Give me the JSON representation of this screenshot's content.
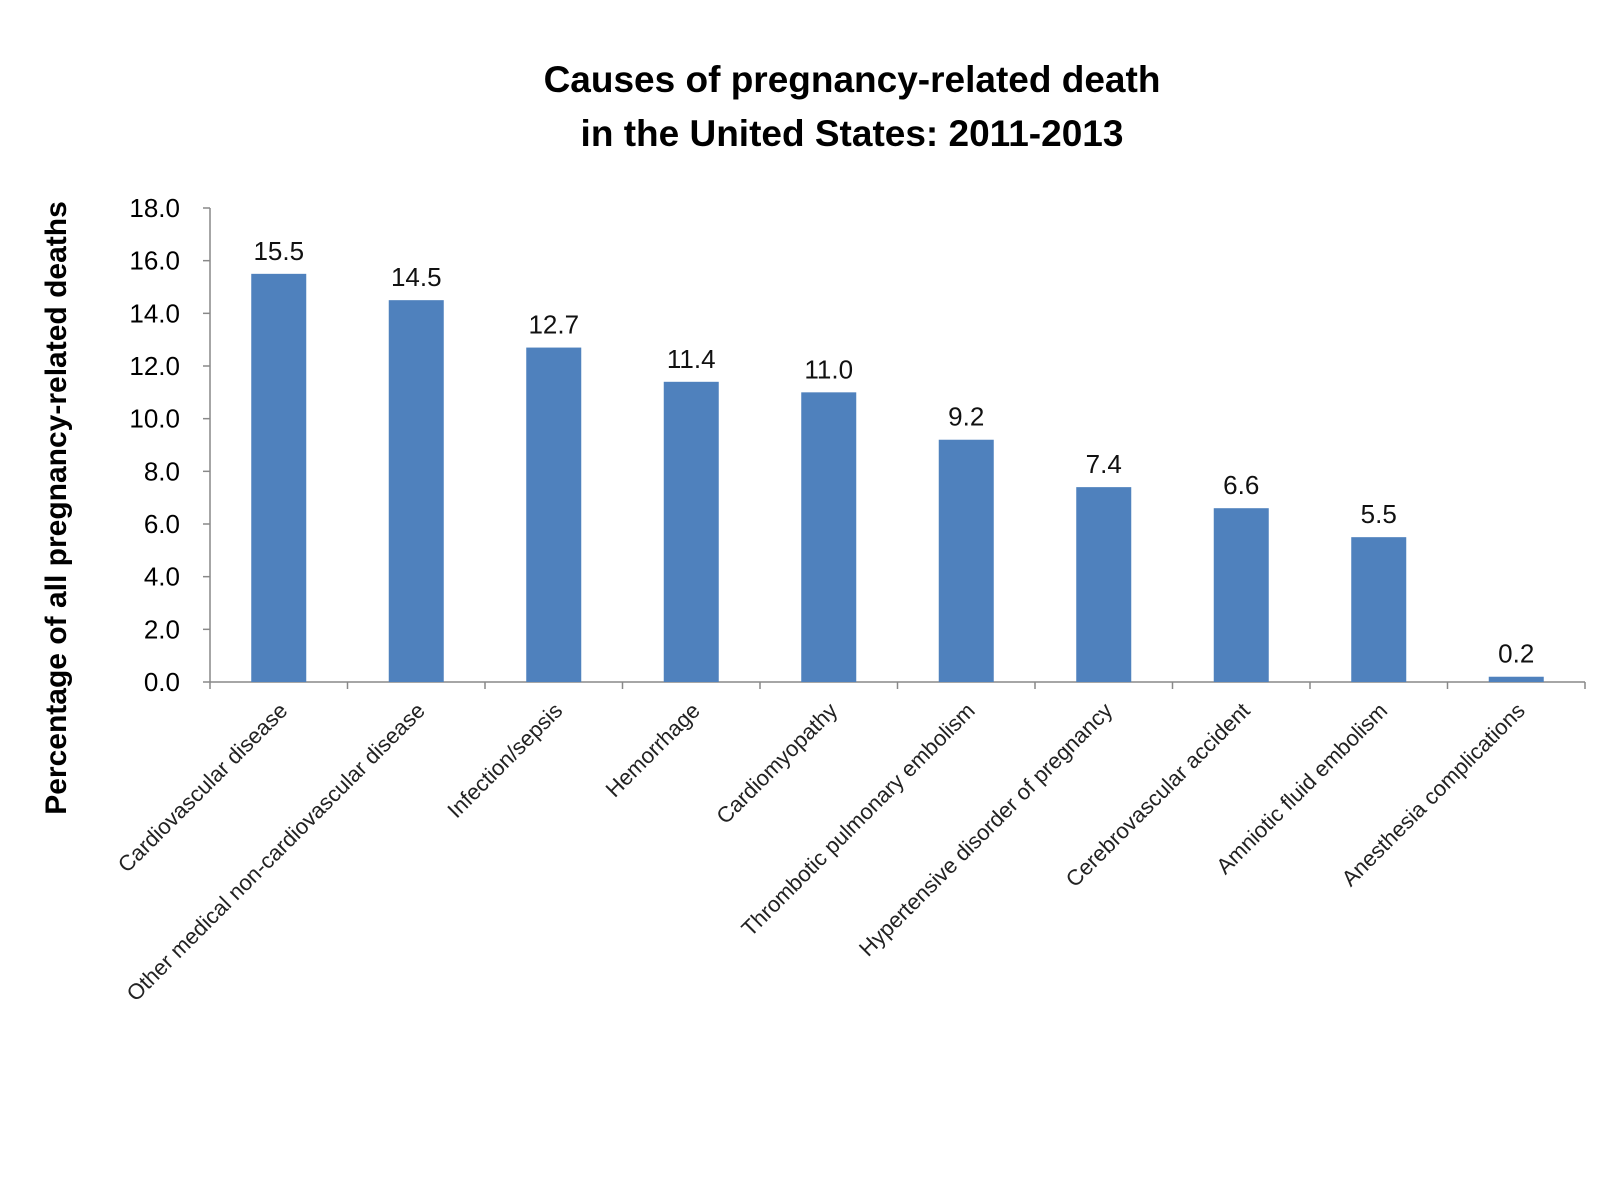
{
  "chart_data": {
    "type": "bar",
    "title": [
      "Causes of pregnancy-related death",
      "in the United States: 2011-2013"
    ],
    "xlabel": "",
    "ylabel": "Percentage of all pregnancy-related deaths",
    "ylim": [
      0,
      18
    ],
    "ytick_step": 2,
    "ytick_labels": [
      "0.0",
      "2.0",
      "4.0",
      "6.0",
      "8.0",
      "10.0",
      "12.0",
      "14.0",
      "16.0",
      "18.0"
    ],
    "grid": false,
    "legend": "none",
    "bar_color": "#4f81bd",
    "categories": [
      "Cardiovascular disease",
      "Other medical non-cardiovascular disease",
      "Infection/sepsis",
      "Hemorrhage",
      "Cardiomyopathy",
      "Thrombotic pulmonary embolism",
      "Hypertensive disorder of pregnancy",
      "Cerebrovascular accident",
      "Amniotic fluid embolism",
      "Anesthesia complications"
    ],
    "values": [
      15.5,
      14.5,
      12.7,
      11.4,
      11.0,
      9.2,
      7.4,
      6.6,
      5.5,
      0.2
    ],
    "data_labels": [
      "15.5",
      "14.5",
      "12.7",
      "11.4",
      "11.0",
      "9.2",
      "7.4",
      "6.6",
      "5.5",
      "0.2"
    ]
  }
}
